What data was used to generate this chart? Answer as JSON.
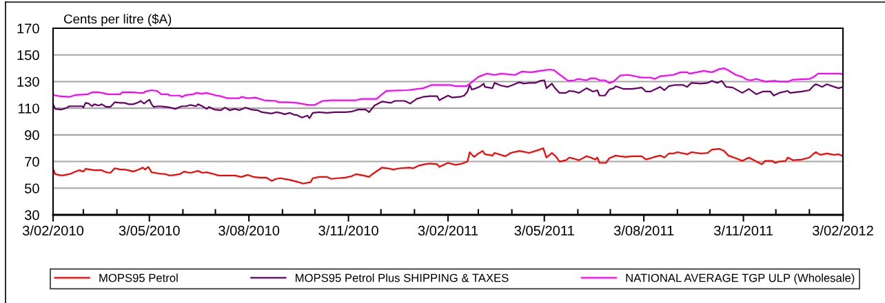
{
  "chart_data": {
    "type": "line",
    "ylabel": "Cents per litre ($A)",
    "xlim": [
      "2010-02-03",
      "2012-02-03"
    ],
    "xticks": [
      {
        "value": "2010-02-03",
        "label": "3/02/2010"
      },
      {
        "value": "2010-03-03",
        "label": null
      },
      {
        "value": "2010-04-03",
        "label": null
      },
      {
        "value": "2010-05-03",
        "label": "3/05/2010"
      },
      {
        "value": "2010-06-03",
        "label": null
      },
      {
        "value": "2010-07-03",
        "label": null
      },
      {
        "value": "2010-08-03",
        "label": "3/08/2010"
      },
      {
        "value": "2010-09-03",
        "label": null
      },
      {
        "value": "2010-10-03",
        "label": null
      },
      {
        "value": "2010-11-03",
        "label": "3/11/2010"
      },
      {
        "value": "2010-12-03",
        "label": null
      },
      {
        "value": "2011-01-03",
        "label": null
      },
      {
        "value": "2011-02-03",
        "label": "3/02/2011"
      },
      {
        "value": "2011-03-03",
        "label": null
      },
      {
        "value": "2011-04-03",
        "label": null
      },
      {
        "value": "2011-05-03",
        "label": "3/05/2011"
      },
      {
        "value": "2011-06-03",
        "label": null
      },
      {
        "value": "2011-07-03",
        "label": null
      },
      {
        "value": "2011-08-03",
        "label": "3/08/2011"
      },
      {
        "value": "2011-09-03",
        "label": null
      },
      {
        "value": "2011-10-03",
        "label": null
      },
      {
        "value": "2011-11-03",
        "label": "3/11/2011"
      },
      {
        "value": "2011-12-03",
        "label": null
      },
      {
        "value": "2012-01-03",
        "label": null
      },
      {
        "value": "2012-02-03",
        "label": "3/02/2012"
      }
    ],
    "ylim": [
      30,
      170
    ],
    "yticks": [
      30,
      50,
      70,
      90,
      110,
      130,
      150,
      170
    ],
    "grid": "y",
    "legend": "bottom",
    "line_style": "solid",
    "series": [
      {
        "name": "MOPS95 Petrol",
        "color": "#ff0000",
        "x": [
          "2010-02-03",
          "2010-02-05",
          "2010-02-11",
          "2010-02-18",
          "2010-02-24",
          "2010-02-27",
          "2010-03-03",
          "2010-03-05",
          "2010-03-09",
          "2010-03-13",
          "2010-03-20",
          "2010-03-24",
          "2010-03-28",
          "2010-04-01",
          "2010-04-06",
          "2010-04-10",
          "2010-04-16",
          "2010-04-18",
          "2010-04-23",
          "2010-04-27",
          "2010-04-29",
          "2010-05-02",
          "2010-05-05",
          "2010-05-12",
          "2010-05-18",
          "2010-05-22",
          "2010-05-31",
          "2010-06-04",
          "2010-06-10",
          "2010-06-17",
          "2010-06-21",
          "2010-06-25",
          "2010-07-02",
          "2010-07-06",
          "2010-07-16",
          "2010-07-21",
          "2010-07-27",
          "2010-08-02",
          "2010-08-07",
          "2010-08-13",
          "2010-08-19",
          "2010-08-24",
          "2010-08-28",
          "2010-09-01",
          "2010-09-08",
          "2010-09-16",
          "2010-09-22",
          "2010-09-29",
          "2010-10-01",
          "2010-10-07",
          "2010-10-14",
          "2010-10-18",
          "2010-10-24",
          "2010-10-31",
          "2010-11-06",
          "2010-11-10",
          "2010-11-17",
          "2010-11-22",
          "2010-11-25",
          "2010-12-04",
          "2010-12-12",
          "2010-12-14",
          "2010-12-21",
          "2010-12-29",
          "2011-01-02",
          "2011-01-07",
          "2011-01-13",
          "2011-01-17",
          "2011-01-24",
          "2011-01-26",
          "2011-02-03",
          "2011-02-10",
          "2011-02-16",
          "2011-02-21",
          "2011-02-23",
          "2011-02-27",
          "2011-03-03",
          "2011-03-07",
          "2011-03-09",
          "2011-03-16",
          "2011-03-18",
          "2011-03-28",
          "2011-04-02",
          "2011-04-10",
          "2011-04-19",
          "2011-04-27",
          "2011-05-02",
          "2011-05-05",
          "2011-05-10",
          "2011-05-14",
          "2011-05-17",
          "2011-05-23",
          "2011-05-26",
          "2011-05-31",
          "2011-06-04",
          "2011-06-11",
          "2011-06-15",
          "2011-06-19",
          "2011-06-21",
          "2011-06-23",
          "2011-06-29",
          "2011-07-02",
          "2011-07-08",
          "2011-07-12",
          "2011-07-17",
          "2011-07-23",
          "2011-08-01",
          "2011-08-05",
          "2011-08-09",
          "2011-08-13",
          "2011-08-18",
          "2011-08-22",
          "2011-08-26",
          "2011-08-30",
          "2011-09-03",
          "2011-09-12",
          "2011-09-16",
          "2011-09-25",
          "2011-10-01",
          "2011-10-05",
          "2011-10-12",
          "2011-10-16",
          "2011-10-20",
          "2011-10-27",
          "2011-11-02",
          "2011-11-08",
          "2011-11-15",
          "2011-11-20",
          "2011-11-23",
          "2011-11-30",
          "2011-12-02",
          "2011-12-06",
          "2011-12-12",
          "2011-12-14",
          "2011-12-19",
          "2011-12-27",
          "2012-01-03",
          "2012-01-07",
          "2012-01-09",
          "2012-01-13",
          "2012-01-19",
          "2012-01-26",
          "2012-01-30",
          "2012-02-03"
        ],
        "values": [
          64.5,
          60.5,
          59.5,
          60.5,
          62.5,
          63.5,
          62.5,
          64.5,
          64,
          63.5,
          63.5,
          62,
          61.5,
          65,
          64,
          64,
          63,
          62.5,
          64,
          65.5,
          64,
          66,
          62,
          61,
          60.5,
          59.5,
          60.5,
          62.5,
          61.5,
          63,
          61.5,
          62,
          60.5,
          59.5,
          59.5,
          59.5,
          58.5,
          60,
          58.5,
          58,
          58,
          55.5,
          57,
          57.5,
          56.5,
          55,
          53.5,
          54.5,
          57.5,
          58.5,
          58.5,
          57,
          57.5,
          58,
          59,
          60.5,
          59.5,
          58.5,
          60.5,
          65.5,
          64.5,
          64,
          65,
          65.5,
          65,
          67,
          68,
          68.5,
          68,
          66,
          69,
          67.5,
          68.5,
          70,
          77,
          73.5,
          76,
          78,
          75.5,
          74.5,
          76.5,
          74,
          76.5,
          78,
          76.5,
          78.5,
          80,
          73,
          76.5,
          73.5,
          70,
          71,
          73,
          72,
          71,
          74,
          73,
          71.5,
          73,
          69,
          69,
          72.5,
          74.5,
          74,
          73.5,
          74,
          74,
          71.5,
          72.5,
          73.5,
          74.5,
          73,
          76,
          76,
          77,
          75.5,
          77,
          76,
          76.5,
          79,
          79.5,
          78,
          74.5,
          72.5,
          70.5,
          73,
          70,
          68,
          70.5,
          70.5,
          69,
          70,
          70.5,
          73,
          71,
          71.5,
          73,
          76,
          77,
          75,
          76,
          75,
          75.5,
          74
        ]
      },
      {
        "name": "MOPS95 Petrol Plus SHIPPING & TAXES",
        "color": "#660066",
        "x": [
          "2010-02-03",
          "2010-02-05",
          "2010-02-11",
          "2010-02-16",
          "2010-02-18",
          "2010-02-24",
          "2010-03-02",
          "2010-03-03",
          "2010-03-05",
          "2010-03-08",
          "2010-03-11",
          "2010-03-13",
          "2010-03-17",
          "2010-03-20",
          "2010-03-24",
          "2010-03-28",
          "2010-04-01",
          "2010-04-06",
          "2010-04-10",
          "2010-04-14",
          "2010-04-18",
          "2010-04-23",
          "2010-04-25",
          "2010-04-28",
          "2010-05-03",
          "2010-05-05",
          "2010-05-07",
          "2010-05-12",
          "2010-05-18",
          "2010-05-22",
          "2010-05-27",
          "2010-06-02",
          "2010-06-06",
          "2010-06-10",
          "2010-06-15",
          "2010-06-17",
          "2010-06-21",
          "2010-06-25",
          "2010-06-27",
          "2010-07-02",
          "2010-07-08",
          "2010-07-12",
          "2010-07-16",
          "2010-07-21",
          "2010-07-25",
          "2010-07-31",
          "2010-08-05",
          "2010-08-11",
          "2010-08-15",
          "2010-08-24",
          "2010-08-28",
          "2010-09-01",
          "2010-09-05",
          "2010-09-10",
          "2010-09-14",
          "2010-09-16",
          "2010-09-21",
          "2010-09-26",
          "2010-09-28",
          "2010-10-01",
          "2010-10-07",
          "2010-10-14",
          "2010-10-22",
          "2010-10-31",
          "2010-11-06",
          "2010-11-12",
          "2010-11-19",
          "2010-11-22",
          "2010-11-27",
          "2010-12-04",
          "2010-12-12",
          "2010-12-16",
          "2010-12-25",
          "2010-12-30",
          "2011-01-05",
          "2011-01-11",
          "2011-01-17",
          "2011-01-24",
          "2011-01-26",
          "2011-02-03",
          "2011-02-07",
          "2011-02-14",
          "2011-02-18",
          "2011-02-21",
          "2011-02-23",
          "2011-02-25",
          "2011-03-01",
          "2011-03-05",
          "2011-03-08",
          "2011-03-09",
          "2011-03-16",
          "2011-03-18",
          "2011-03-24",
          "2011-03-30",
          "2011-04-04",
          "2011-04-10",
          "2011-04-14",
          "2011-04-19",
          "2011-04-25",
          "2011-04-29",
          "2011-05-03",
          "2011-05-05",
          "2011-05-10",
          "2011-05-12",
          "2011-05-17",
          "2011-05-23",
          "2011-05-26",
          "2011-05-31",
          "2011-06-04",
          "2011-06-11",
          "2011-06-17",
          "2011-06-21",
          "2011-06-23",
          "2011-06-28",
          "2011-07-02",
          "2011-07-06",
          "2011-07-08",
          "2011-07-15",
          "2011-07-23",
          "2011-08-01",
          "2011-08-05",
          "2011-08-09",
          "2011-08-13",
          "2011-08-18",
          "2011-08-22",
          "2011-08-26",
          "2011-09-01",
          "2011-09-08",
          "2011-09-12",
          "2011-09-16",
          "2011-09-25",
          "2011-10-01",
          "2011-10-05",
          "2011-10-10",
          "2011-10-14",
          "2011-10-18",
          "2011-10-24",
          "2011-11-02",
          "2011-11-08",
          "2011-11-15",
          "2011-11-21",
          "2011-11-28",
          "2011-12-01",
          "2011-12-06",
          "2011-12-14",
          "2011-12-16",
          "2011-12-27",
          "2012-01-03",
          "2012-01-07",
          "2012-01-09",
          "2012-01-15",
          "2012-01-19",
          "2012-01-26",
          "2012-01-30",
          "2012-02-03"
        ],
        "values": [
          113,
          109.5,
          109,
          110.5,
          111.5,
          111.5,
          111.5,
          110.5,
          114,
          113.5,
          111.5,
          113,
          112,
          113,
          111,
          111,
          114.5,
          114,
          114,
          113,
          113,
          114.5,
          115.5,
          113.5,
          116.5,
          113,
          111,
          111.5,
          111,
          110.5,
          109.5,
          111.5,
          111.5,
          112.5,
          111.5,
          113,
          111.5,
          109.5,
          111,
          109,
          108.5,
          110.5,
          108.5,
          109.5,
          108.5,
          110.5,
          109,
          108.5,
          107,
          106,
          107,
          106.5,
          105.5,
          106.5,
          105,
          105,
          103,
          104.5,
          102.5,
          106.5,
          107,
          106.5,
          107,
          107,
          107.5,
          109,
          109,
          107,
          112,
          115,
          114,
          115.5,
          115.5,
          113.5,
          117,
          118.5,
          119,
          119,
          116,
          119.5,
          118,
          118.5,
          119.5,
          122.5,
          127.5,
          124,
          125,
          126.5,
          128.5,
          126,
          125,
          129,
          127,
          126,
          127.5,
          129.5,
          128.5,
          129,
          129,
          130.5,
          131,
          125,
          128.5,
          126,
          121.5,
          121.5,
          123,
          122.5,
          121.5,
          125,
          122.5,
          123.5,
          119.5,
          119.5,
          124,
          125,
          126.5,
          124.5,
          124.5,
          125.5,
          122.5,
          122.5,
          124,
          126,
          123.5,
          126.5,
          127.5,
          127.5,
          126,
          129,
          128.5,
          129,
          130.5,
          129,
          130.5,
          126,
          125.5,
          121.5,
          124.5,
          120.5,
          122.5,
          122.5,
          119.5,
          121.5,
          123,
          121.5,
          122.5,
          123.5,
          127,
          128,
          126,
          128,
          126,
          125,
          126
        ]
      },
      {
        "name": "NATIONAL AVERAGE TGP ULP (Wholesale)",
        "color": "#ff00ff",
        "x": [
          "2010-02-03",
          "2010-02-09",
          "2010-02-18",
          "2010-02-24",
          "2010-03-07",
          "2010-03-11",
          "2010-03-17",
          "2010-03-20",
          "2010-03-26",
          "2010-04-06",
          "2010-04-08",
          "2010-04-18",
          "2010-04-23",
          "2010-04-28",
          "2010-04-29",
          "2010-05-05",
          "2010-05-10",
          "2010-05-14",
          "2010-05-20",
          "2010-05-22",
          "2010-05-31",
          "2010-06-02",
          "2010-06-06",
          "2010-06-13",
          "2010-06-15",
          "2010-06-21",
          "2010-06-25",
          "2010-07-04",
          "2010-07-08",
          "2010-07-14",
          "2010-07-25",
          "2010-07-27",
          "2010-08-02",
          "2010-08-09",
          "2010-08-17",
          "2010-08-28",
          "2010-08-30",
          "2010-09-08",
          "2010-09-16",
          "2010-09-20",
          "2010-09-27",
          "2010-10-03",
          "2010-10-10",
          "2010-10-18",
          "2010-11-10",
          "2010-11-15",
          "2010-11-29",
          "2010-12-04",
          "2010-12-08",
          "2010-12-27",
          "2011-01-11",
          "2011-01-19",
          "2011-01-28",
          "2011-02-05",
          "2011-02-10",
          "2011-02-20",
          "2011-02-24",
          "2011-03-03",
          "2011-03-11",
          "2011-03-18",
          "2011-03-24",
          "2011-04-06",
          "2011-04-12",
          "2011-04-21",
          "2011-04-29",
          "2011-05-08",
          "2011-05-12",
          "2011-05-16",
          "2011-05-25",
          "2011-05-31",
          "2011-06-03",
          "2011-06-11",
          "2011-06-15",
          "2011-06-19",
          "2011-06-23",
          "2011-06-28",
          "2011-07-02",
          "2011-07-06",
          "2011-07-12",
          "2011-07-19",
          "2011-07-23",
          "2011-08-01",
          "2011-08-09",
          "2011-08-13",
          "2011-08-18",
          "2011-08-30",
          "2011-09-06",
          "2011-09-12",
          "2011-09-14",
          "2011-09-21",
          "2011-09-27",
          "2011-10-05",
          "2011-10-12",
          "2011-10-16",
          "2011-10-20",
          "2011-10-27",
          "2011-11-02",
          "2011-11-06",
          "2011-11-10",
          "2011-11-15",
          "2011-11-19",
          "2011-11-23",
          "2011-12-02",
          "2011-12-06",
          "2011-12-14",
          "2011-12-19",
          "2012-01-03",
          "2012-01-07",
          "2012-01-11",
          "2012-01-26",
          "2012-02-01",
          "2012-02-03"
        ],
        "values": [
          120,
          119,
          118.5,
          120,
          120.5,
          122,
          122,
          121.5,
          120.5,
          120.5,
          122,
          122,
          121.5,
          121.5,
          122.5,
          123.5,
          123,
          120.5,
          120.5,
          119.5,
          119.5,
          118.5,
          120,
          120.5,
          121.5,
          121,
          121.5,
          119.5,
          119,
          117.5,
          117.5,
          118.5,
          117.5,
          118,
          116,
          115.5,
          114.5,
          114.5,
          114,
          113.5,
          112.5,
          112.5,
          115.5,
          116,
          116,
          117,
          117,
          120.5,
          123,
          123.5,
          125,
          127.5,
          127.5,
          127.5,
          126.5,
          126.5,
          129,
          133.5,
          136,
          135,
          136,
          135,
          137.5,
          137,
          138,
          139,
          138.5,
          136,
          130.5,
          131,
          132,
          131,
          132.5,
          132.5,
          131,
          131,
          129,
          130,
          134.5,
          135,
          134.5,
          133,
          133,
          132,
          134,
          135,
          137,
          137,
          136,
          137,
          138,
          137,
          139.5,
          140,
          138.5,
          135,
          133.5,
          131.5,
          131,
          132,
          131,
          130,
          130.5,
          130,
          130,
          131.5,
          132,
          133.5,
          136,
          136,
          136,
          135
        ]
      }
    ]
  }
}
